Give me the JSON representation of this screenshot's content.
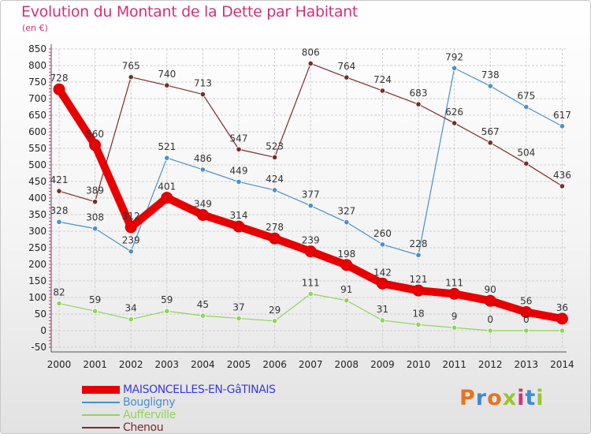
{
  "title": "Evolution du Montant de la Dette par Habitant",
  "unit_label": "(en €)",
  "logo": {
    "text": "Proxiti",
    "colors": [
      "#e8741f",
      "#3c8bd6",
      "#e8741f",
      "#9ac531",
      "#d2317a",
      "#3c8bd6",
      "#9ac531"
    ]
  },
  "chart_data": {
    "type": "line",
    "title": "Evolution du Montant de la Dette par Habitant",
    "ylabel": "(en €)",
    "x": [
      "2000",
      "2001",
      "2002",
      "2003",
      "2004",
      "2005",
      "2006",
      "2007",
      "2008",
      "2009",
      "2010",
      "2011",
      "2012",
      "2013",
      "2014"
    ],
    "ylim": [
      -50,
      850
    ],
    "yticks": [
      -50,
      0,
      50,
      100,
      150,
      200,
      250,
      300,
      350,
      400,
      450,
      500,
      550,
      600,
      650,
      700,
      750,
      800,
      850
    ],
    "grid": true,
    "legend_position": "bottom-left",
    "series": [
      {
        "name": "MAISONCELLES-EN-GâTINAIS",
        "color": "#e80000",
        "values": [
          728,
          560,
          312,
          401,
          349,
          314,
          278,
          239,
          198,
          142,
          121,
          111,
          90,
          56,
          36
        ],
        "labels": [
          "728",
          "560",
          "312",
          "401",
          "349",
          "314",
          "278",
          "239",
          "198",
          "142",
          "121",
          "111",
          "90",
          "56",
          "36"
        ]
      },
      {
        "name": "Bougligny",
        "color": "#4a90cc",
        "values": [
          328,
          308,
          239,
          521,
          486,
          449,
          424,
          377,
          327,
          260,
          228,
          792,
          738,
          675,
          617
        ],
        "labels": [
          "328",
          "308",
          "239",
          "521",
          "486",
          "449",
          "424",
          "377",
          "327",
          "260",
          "228",
          "792",
          "738",
          "675",
          "617"
        ]
      },
      {
        "name": "Aufferville",
        "color": "#8fd45a",
        "values": [
          82,
          59,
          34,
          59,
          45,
          37,
          29,
          111,
          91,
          31,
          18,
          9,
          0,
          0,
          0
        ],
        "labels": [
          "82",
          "59",
          "34",
          "59",
          "45",
          "37",
          "29",
          "111",
          "91",
          "31",
          "18",
          "9",
          "0",
          "0",
          ""
        ]
      },
      {
        "name": "Chenou",
        "color": "#7b2b2b",
        "values": [
          421,
          389,
          765,
          740,
          713,
          547,
          523,
          806,
          764,
          724,
          683,
          626,
          567,
          504,
          436
        ],
        "labels": [
          "421",
          "389",
          "765",
          "740",
          "713",
          "547",
          "523",
          "806",
          "764",
          "724",
          "683",
          "626",
          "567",
          "504",
          "436"
        ]
      }
    ]
  }
}
